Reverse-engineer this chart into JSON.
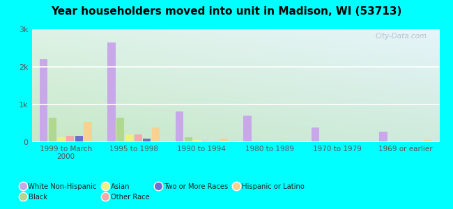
{
  "title": "Year householders moved into unit in Madison, WI (53713)",
  "categories": [
    "1999 to March\n2000",
    "1995 to 1998",
    "1990 to 1994",
    "1980 to 1989",
    "1970 to 1979",
    "1969 or earlier"
  ],
  "series_order": [
    "White Non-Hispanic",
    "Black",
    "Asian",
    "Other Race",
    "Two or More Races",
    "Hispanic or Latino"
  ],
  "series": {
    "White Non-Hispanic": [
      2200,
      2650,
      820,
      700,
      380,
      280
    ],
    "Black": [
      650,
      650,
      130,
      20,
      15,
      10
    ],
    "Asian": [
      130,
      200,
      50,
      15,
      10,
      5
    ],
    "Other Race": [
      170,
      200,
      30,
      10,
      5,
      5
    ],
    "Two or More Races": [
      160,
      100,
      20,
      10,
      5,
      5
    ],
    "Hispanic or Latino": [
      530,
      380,
      100,
      20,
      10,
      60
    ]
  },
  "colors": {
    "White Non-Hispanic": "#c8a8e8",
    "Black": "#b0d890",
    "Asian": "#f0f080",
    "Other Race": "#f8a8a8",
    "Two or More Races": "#7070cc",
    "Hispanic or Latino": "#f8d090"
  },
  "ylim": [
    0,
    3000
  ],
  "yticks": [
    0,
    1000,
    2000,
    3000
  ],
  "ytick_labels": [
    "0",
    "1k",
    "2k",
    "3k"
  ],
  "background_color": "#00ffff",
  "watermark": "City-Data.com",
  "legend_order": [
    [
      "White Non-Hispanic",
      "Black",
      "Asian",
      "Other Race"
    ],
    [
      "Two or More Races",
      "Hispanic or Latino"
    ]
  ]
}
